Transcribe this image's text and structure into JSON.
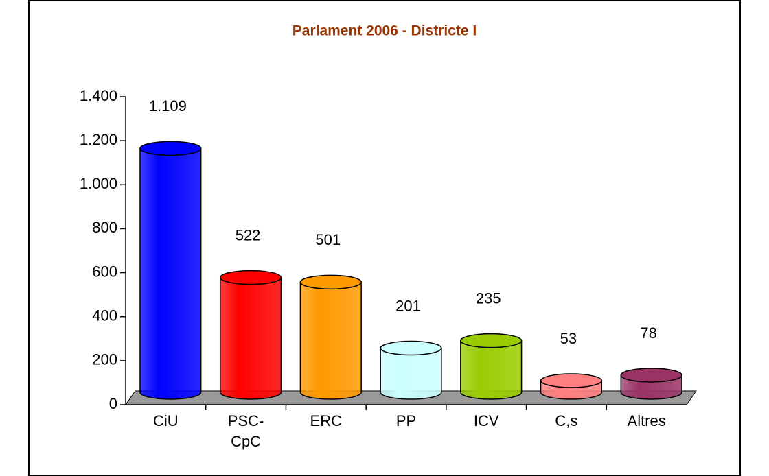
{
  "chart_data": {
    "type": "bar",
    "title": "Parlament 2006 - Districte I",
    "categories": [
      "CiU",
      "PSC-CpC",
      "ERC",
      "PP",
      "ICV",
      "C,s",
      "Altres"
    ],
    "values": [
      1109,
      522,
      501,
      201,
      235,
      53,
      78
    ],
    "value_labels": [
      "1.109",
      "522",
      "501",
      "201",
      "235",
      "53",
      "78"
    ],
    "colors": [
      "#0000ff",
      "#ff0000",
      "#ff9900",
      "#ccffff",
      "#99cc00",
      "#ff8080",
      "#993366"
    ],
    "ylim": [
      0,
      1400
    ],
    "yticks": [
      0,
      200,
      400,
      600,
      800,
      {
        "value": 1000,
        "label": "1.000"
      },
      {
        "value": 1200,
        "label": "1.200"
      },
      {
        "value": 1400,
        "label": "1.400"
      }
    ]
  }
}
